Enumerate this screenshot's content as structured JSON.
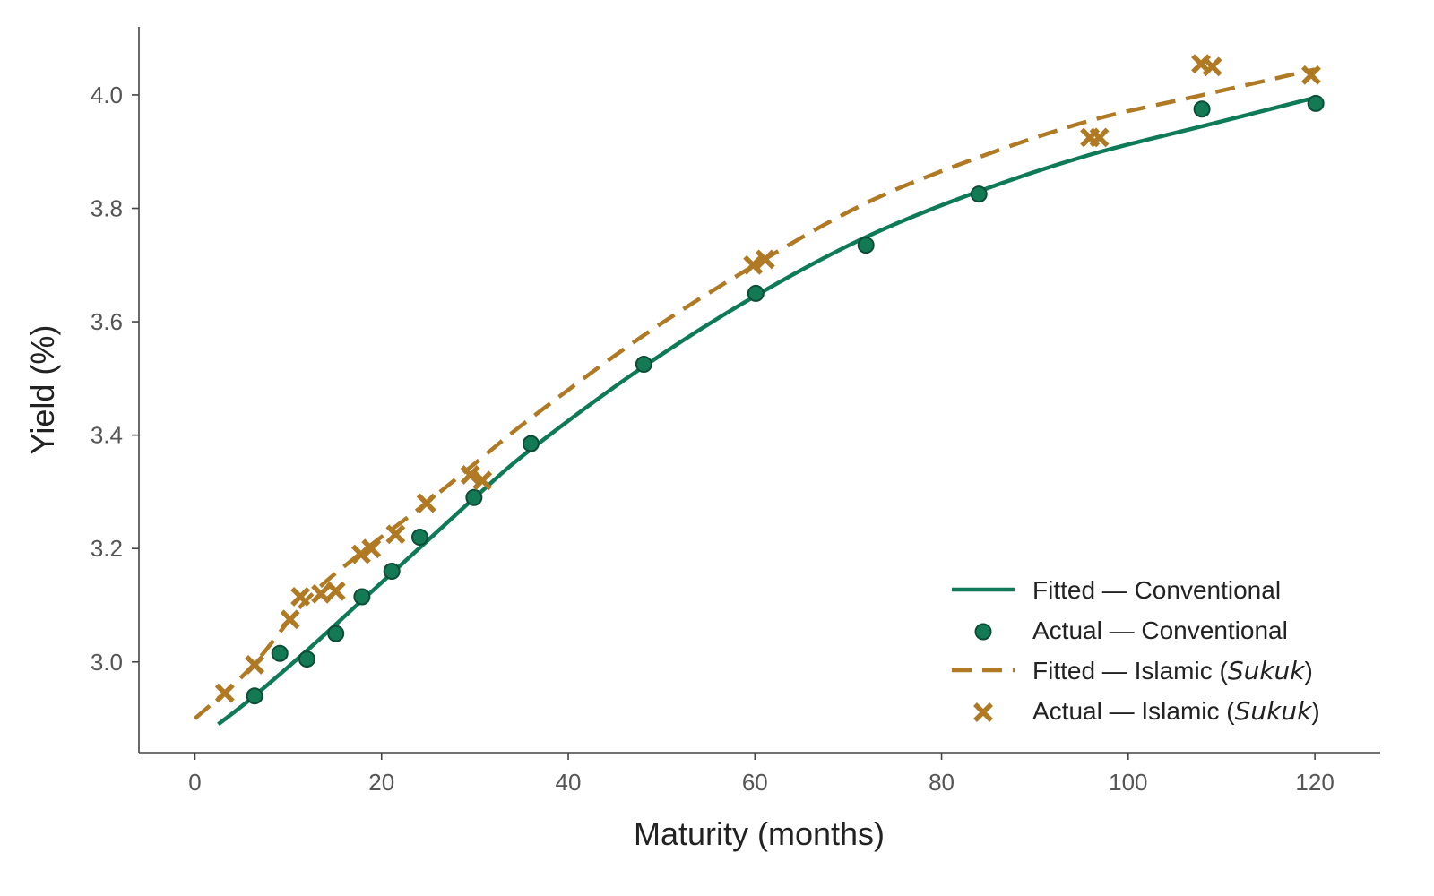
{
  "chart_data": {
    "type": "scatter",
    "title": "",
    "xlabel": "Maturity (months)",
    "ylabel": "Yield (%)",
    "xlim": [
      -6,
      127
    ],
    "ylim": [
      2.84,
      4.12
    ],
    "xticks": [
      "0",
      "20",
      "40",
      "60",
      "80",
      "100",
      "120"
    ],
    "yticks": [
      "3.0",
      "3.2",
      "3.4",
      "3.6",
      "3.8",
      "4.0"
    ],
    "grid": false,
    "legend_position": "lower-right",
    "colors": {
      "conventional": "#0f7a58",
      "islamic": "#b07a24"
    },
    "series": [
      {
        "name": "Fitted — Conventional",
        "legend_prefix": "Fitted — Conventional",
        "legend_em": "",
        "legend_suffix": "",
        "kind": "line",
        "style": "solid",
        "x": [
          2.5,
          6,
          12,
          18,
          24,
          30,
          36,
          48,
          60,
          72,
          84,
          96,
          108,
          120
        ],
        "y": [
          2.89,
          2.935,
          3.02,
          3.11,
          3.2,
          3.29,
          3.375,
          3.52,
          3.645,
          3.75,
          3.83,
          3.895,
          3.945,
          3.995
        ]
      },
      {
        "name": "Actual — Conventional",
        "legend_prefix": "Actual — Conventional",
        "legend_em": "",
        "legend_suffix": "",
        "kind": "circle",
        "x": [
          6.4,
          9.1,
          12.0,
          15.1,
          17.9,
          21.1,
          24.1,
          29.9,
          36.0,
          48.1,
          60.1,
          71.9,
          84.0,
          107.9,
          120.1
        ],
        "y": [
          2.94,
          3.015,
          3.005,
          3.05,
          3.115,
          3.16,
          3.22,
          3.29,
          3.385,
          3.525,
          3.65,
          3.735,
          3.825,
          3.975,
          3.985
        ]
      },
      {
        "name": "Fitted — Islamic (Sukuk)",
        "legend_prefix": "Fitted — Islamic (",
        "legend_em": "Sukuk",
        "legend_suffix": ")",
        "kind": "line",
        "style": "dashed",
        "x": [
          0,
          6,
          12,
          18,
          24,
          30,
          36,
          48,
          60,
          72,
          84,
          96,
          108,
          120
        ],
        "y": [
          2.9,
          2.99,
          3.11,
          3.195,
          3.27,
          3.35,
          3.43,
          3.575,
          3.7,
          3.81,
          3.89,
          3.955,
          4.0,
          4.045
        ]
      },
      {
        "name": "Actual — Islamic (Sukuk)",
        "legend_prefix": "Actual — Islamic (",
        "legend_em": "Sukuk",
        "legend_suffix": ")",
        "kind": "cross",
        "x": [
          3.2,
          6.4,
          10.2,
          11.3,
          13.5,
          15.1,
          17.8,
          18.9,
          21.5,
          24.8,
          29.5,
          30.8,
          59.8,
          61.1,
          95.9,
          96.9,
          107.8,
          109.0,
          119.6
        ],
        "y": [
          2.945,
          2.995,
          3.075,
          3.115,
          3.12,
          3.125,
          3.19,
          3.2,
          3.225,
          3.28,
          3.33,
          3.32,
          3.7,
          3.71,
          3.925,
          3.925,
          4.055,
          4.05,
          4.035
        ]
      }
    ]
  }
}
